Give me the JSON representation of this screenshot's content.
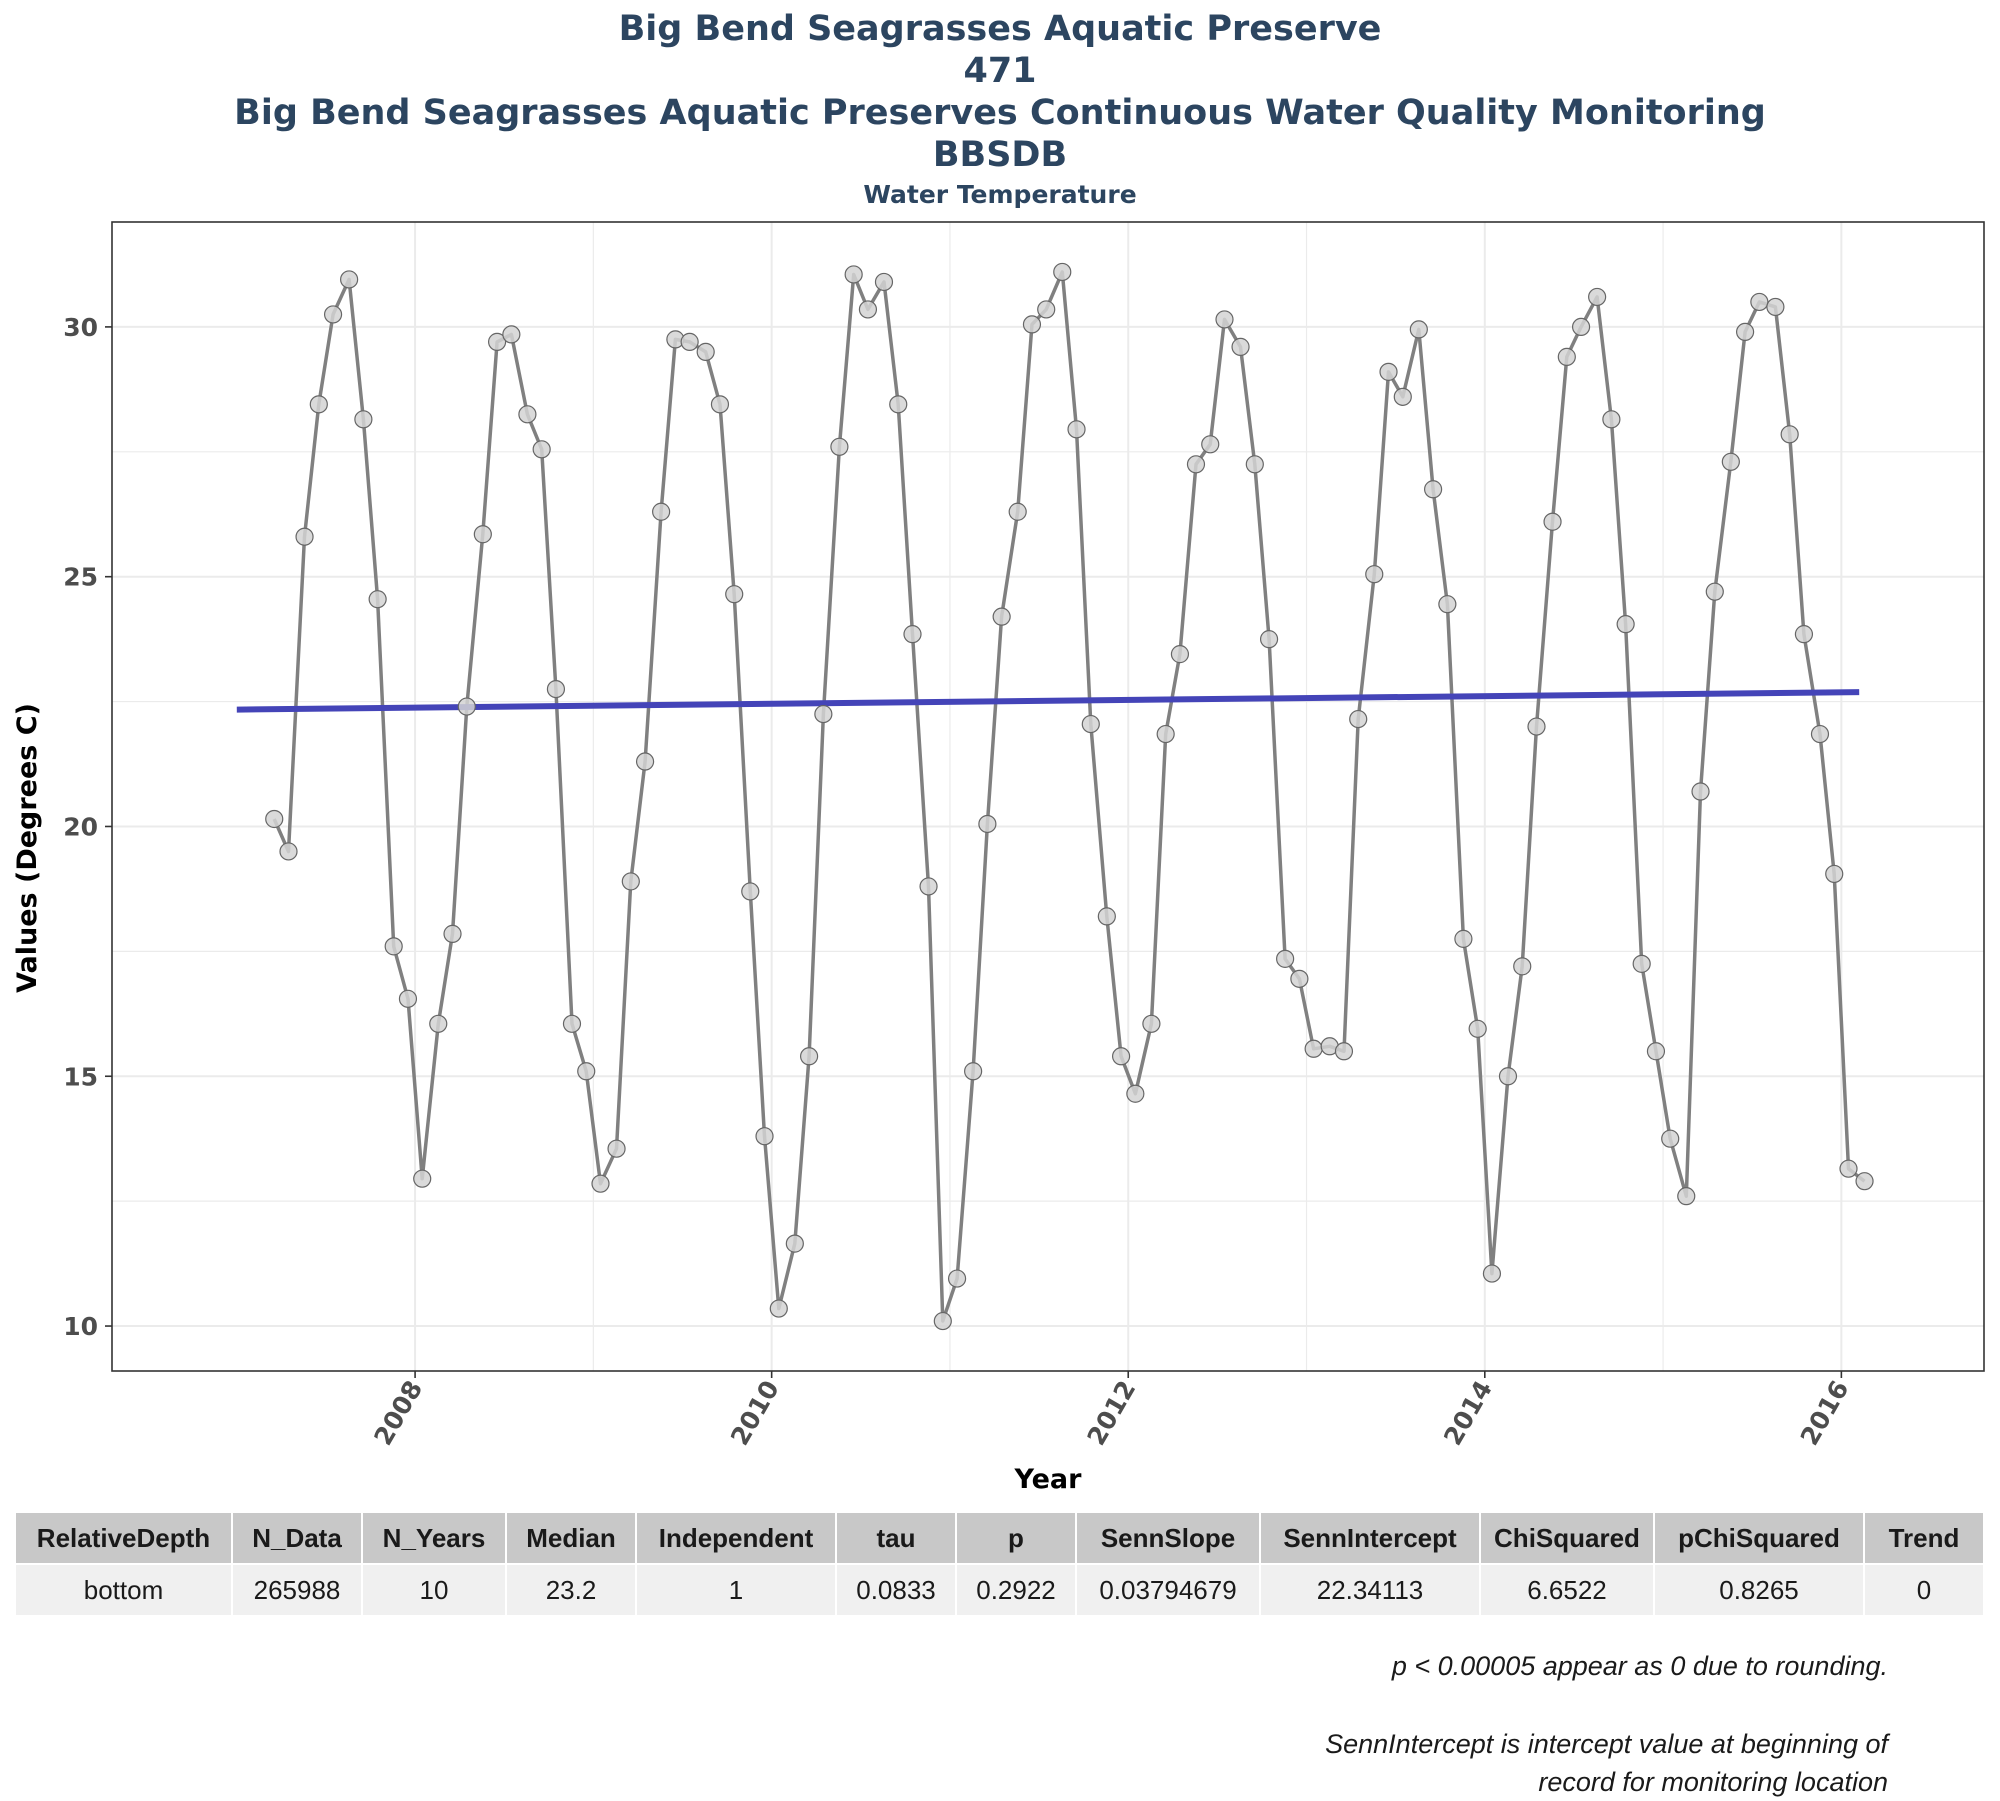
{
  "title": {
    "line1": "Big Bend Seagrasses Aquatic Preserve",
    "line2": "471",
    "line3": "Big Bend Seagrasses Aquatic Preserves Continuous Water Quality Monitoring",
    "line4": "BBSDB",
    "subtitle": "Water Temperature"
  },
  "chart_data": {
    "type": "line",
    "title": "Big Bend Seagrasses Aquatic Preserve",
    "subtitle": "Water Temperature",
    "xlabel": "Year",
    "ylabel": "Values (Degrees C)",
    "xlim": [
      2006.3,
      2016.8
    ],
    "ylim": [
      9.1,
      32.1
    ],
    "x_ticks": [
      2008,
      2010,
      2012,
      2014,
      2016
    ],
    "y_ticks": [
      10,
      15,
      20,
      25,
      30
    ],
    "grid": true,
    "series": [
      {
        "kind": "monthly-mean",
        "color": "#808080",
        "x": [
          2007.21,
          2007.29,
          2007.38,
          2007.46,
          2007.54,
          2007.63,
          2007.71,
          2007.79,
          2007.88,
          2007.96,
          2008.04,
          2008.13,
          2008.21,
          2008.29,
          2008.38,
          2008.46,
          2008.54,
          2008.63,
          2008.71,
          2008.79,
          2008.88,
          2008.96,
          2009.04,
          2009.13,
          2009.21,
          2009.29,
          2009.38,
          2009.46,
          2009.54,
          2009.63,
          2009.71,
          2009.79,
          2009.88,
          2009.96,
          2010.04,
          2010.13,
          2010.21,
          2010.29,
          2010.38,
          2010.46,
          2010.54,
          2010.63,
          2010.71,
          2010.79,
          2010.88,
          2010.96,
          2011.04,
          2011.13,
          2011.21,
          2011.29,
          2011.38,
          2011.46,
          2011.54,
          2011.63,
          2011.71,
          2011.79,
          2011.88,
          2011.96,
          2012.04,
          2012.13,
          2012.21,
          2012.29,
          2012.38,
          2012.46,
          2012.54,
          2012.63,
          2012.71,
          2012.79,
          2012.88,
          2012.96,
          2013.04,
          2013.13,
          2013.21,
          2013.29,
          2013.38,
          2013.46,
          2013.54,
          2013.63,
          2013.71,
          2013.79,
          2013.88,
          2013.96,
          2014.04,
          2014.13,
          2014.21,
          2014.29,
          2014.38,
          2014.46,
          2014.54,
          2014.63,
          2014.71,
          2014.79,
          2014.88,
          2014.96,
          2015.04,
          2015.13,
          2015.21,
          2015.29,
          2015.38,
          2015.46,
          2015.54,
          2015.63,
          2015.71,
          2015.79,
          2015.88,
          2015.96,
          2016.04,
          2016.13
        ],
        "values": [
          20.15,
          19.5,
          25.8,
          28.45,
          30.25,
          30.95,
          28.15,
          24.55,
          17.6,
          16.55,
          12.95,
          16.05,
          17.85,
          22.4,
          25.85,
          29.7,
          29.85,
          28.25,
          27.55,
          22.75,
          16.05,
          15.1,
          12.85,
          13.55,
          18.9,
          21.3,
          26.3,
          29.75,
          29.7,
          29.5,
          28.45,
          24.65,
          18.7,
          13.8,
          10.35,
          11.65,
          15.4,
          22.25,
          27.6,
          31.05,
          30.35,
          30.9,
          28.45,
          23.85,
          18.8,
          10.1,
          10.95,
          15.1,
          20.05,
          24.2,
          26.3,
          30.05,
          30.35,
          31.1,
          27.95,
          22.05,
          18.2,
          15.4,
          14.65,
          16.05,
          21.85,
          23.45,
          27.25,
          27.65,
          30.15,
          29.6,
          27.25,
          23.75,
          17.35,
          16.95,
          15.55,
          15.6,
          15.5,
          22.15,
          25.05,
          29.1,
          28.6,
          29.95,
          26.75,
          24.45,
          17.75,
          15.95,
          11.05,
          15.0,
          17.2,
          22.0,
          26.1,
          29.4,
          30.0,
          30.6,
          28.15,
          24.05,
          17.25,
          15.5,
          13.75,
          12.6,
          20.7,
          24.7,
          27.3,
          29.9,
          30.5,
          30.4,
          27.85,
          23.85,
          21.85,
          19.05,
          13.15,
          12.9
        ]
      },
      {
        "kind": "trend-line",
        "color": "#4444b8",
        "x": [
          2007.0,
          2016.1
        ],
        "values": [
          22.34,
          22.69
        ]
      }
    ]
  },
  "table": {
    "headers": [
      "RelativeDepth",
      "N_Data",
      "N_Years",
      "Median",
      "Independent",
      "tau",
      "p",
      "SennSlope",
      "SennIntercept",
      "ChiSquared",
      "pChiSquared",
      "Trend"
    ],
    "row": [
      "bottom",
      "265988",
      "10",
      "23.2",
      "1",
      "0.0833",
      "0.2922",
      "0.03794679",
      "22.34113",
      "6.6522",
      "0.8265",
      "0"
    ]
  },
  "notes": {
    "p_note": "p < 0.00005 appear as 0 due to rounding.",
    "intercept_line1": "SennIntercept is intercept value at beginning of",
    "intercept_line2": "record for monitoring location"
  },
  "colors": {
    "title": "#2c4560",
    "data_line": "#808080",
    "points": "#d3d3d3",
    "trend": "#4444b8",
    "grid": "#ebebeb",
    "header_bg": "#c8c8c8",
    "row_bg": "#f0f0f0"
  }
}
